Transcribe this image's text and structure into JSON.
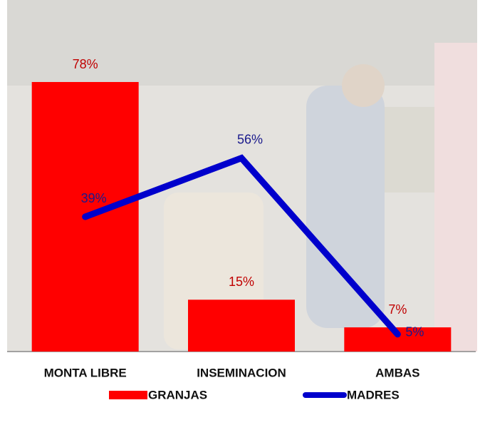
{
  "chart_data": {
    "type": "bar",
    "categories": [
      "MONTA LIBRE",
      "INSEMINACION",
      "AMBAS"
    ],
    "series": [
      {
        "name": "GRANJAS",
        "type": "bar",
        "color": "#ff0000",
        "label_color": "#c00000",
        "values": [
          78,
          15,
          7
        ],
        "value_labels": [
          "78%",
          "15%",
          "7%"
        ]
      },
      {
        "name": "MADRES",
        "type": "line",
        "color": "#0000cc",
        "label_color": "#1a1a8c",
        "values": [
          39,
          56,
          5
        ],
        "value_labels": [
          "39%",
          "56%",
          "5%"
        ]
      }
    ]
  }
}
